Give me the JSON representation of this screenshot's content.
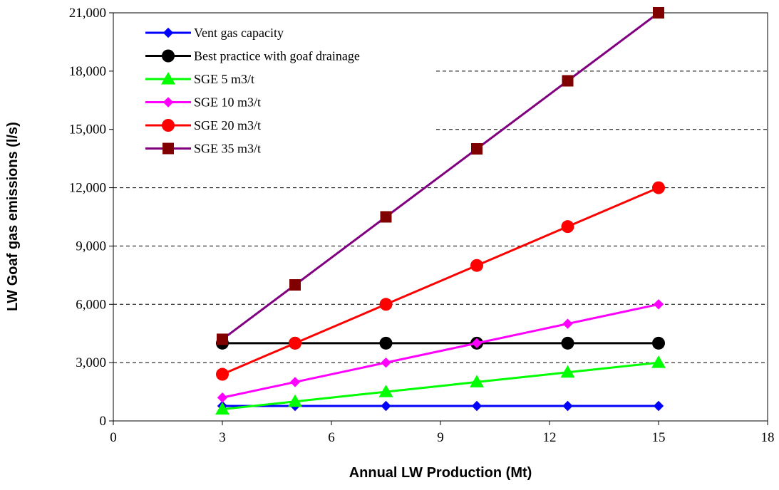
{
  "chart_data": {
    "type": "line",
    "title": "",
    "xlabel": "Annual LW Production (Mt)",
    "ylabel": "LW Goaf gas emissions (l/s)",
    "xlim": [
      0,
      18
    ],
    "ylim": [
      0,
      21000
    ],
    "xticks": [
      0,
      3,
      6,
      9,
      12,
      15,
      18
    ],
    "yticks": [
      0,
      3000,
      6000,
      9000,
      12000,
      15000,
      18000,
      21000
    ],
    "xtick_labels": [
      "0",
      "3",
      "6",
      "9",
      "12",
      "15",
      "18"
    ],
    "ytick_labels": [
      "0",
      "3,000",
      "6,000",
      "9,000",
      "12,000",
      "15,000",
      "18,000",
      "21,000"
    ],
    "grid": "horizontal dashed",
    "legend_position": "top-left",
    "x": [
      3,
      5,
      7.5,
      10,
      12.5,
      15
    ],
    "series": [
      {
        "name": "Vent gas capacity",
        "color": "#0000ff",
        "marker": "diamond",
        "values": [
          770,
          770,
          770,
          770,
          770,
          770
        ]
      },
      {
        "name": "Best practice with goaf drainage",
        "color": "#000000",
        "marker": "circle",
        "values": [
          4000,
          4000,
          4000,
          4000,
          4000,
          4000
        ]
      },
      {
        "name": "SGE 5 m3/t",
        "color": "#00ff00",
        "marker": "triangle",
        "values": [
          600,
          1000,
          1500,
          2000,
          2500,
          3000
        ]
      },
      {
        "name": "SGE 10 m3/t",
        "color": "#ff00ff",
        "marker": "diamond",
        "values": [
          1200,
          2000,
          3000,
          4000,
          5000,
          6000
        ]
      },
      {
        "name": "SGE 20 m3/t",
        "color": "#ff0000",
        "marker": "circle",
        "values": [
          2400,
          4000,
          6000,
          8000,
          10000,
          12000
        ]
      },
      {
        "name": "SGE 35 m3/t",
        "color": "#800080",
        "marker_color": "#800000",
        "marker": "square",
        "values": [
          4200,
          7000,
          10500,
          14000,
          17500,
          21000
        ]
      }
    ]
  }
}
